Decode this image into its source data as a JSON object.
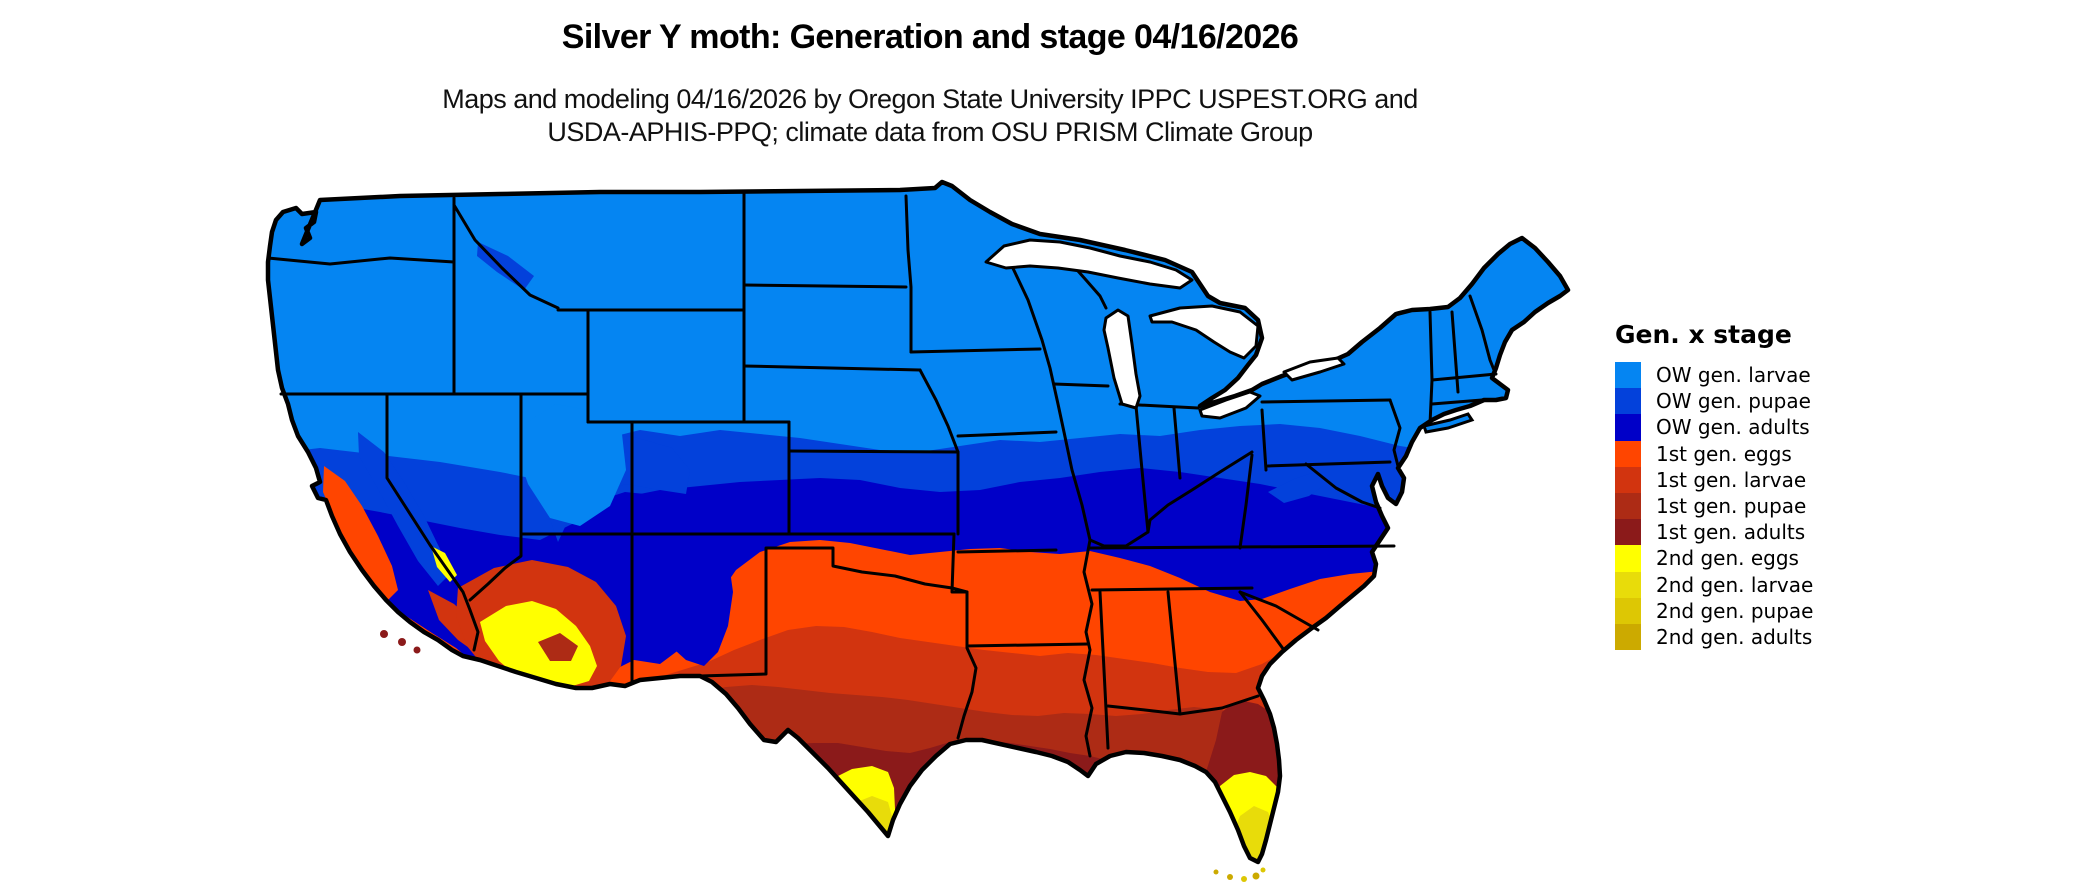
{
  "header": {
    "title": "Silver Y moth: Generation and stage 04/16/2026",
    "subtitle_line1": "Maps and modeling 04/16/2026 by Oregon State University IPPC USPEST.ORG and",
    "subtitle_line2": "USDA-APHIS-PPQ; climate data from OSU PRISM Climate Group"
  },
  "legend": {
    "title": "Gen. x stage",
    "items": [
      {
        "label": "OW gen. larvae",
        "color": "#0585F2"
      },
      {
        "label": "OW gen. pupae",
        "color": "#0341DB"
      },
      {
        "label": "OW gen. adults",
        "color": "#0000C8"
      },
      {
        "label": "1st gen. eggs",
        "color": "#FF4500"
      },
      {
        "label": "1st gen. larvae",
        "color": "#D2340F"
      },
      {
        "label": "1st gen. pupae",
        "color": "#AD2B15"
      },
      {
        "label": "1st gen. adults",
        "color": "#8B1A1A"
      },
      {
        "label": "2nd gen. eggs",
        "color": "#FFFF00"
      },
      {
        "label": "2nd gen. larvae",
        "color": "#E8DC0A"
      },
      {
        "label": "2nd gen. pupae",
        "color": "#DDC704"
      },
      {
        "label": "2nd gen. adults",
        "color": "#CCAA00"
      }
    ]
  },
  "map": {
    "region": "Continental United States",
    "date_shown": "04/16/2026",
    "palette": {
      "ow_larvae": "#0585F2",
      "ow_pupae": "#0341DB",
      "ow_adults": "#0000C8",
      "g1_eggs": "#FF4500",
      "g1_larvae": "#D2340F",
      "g1_pupae": "#AD2B15",
      "g1_adults": "#8B1A1A",
      "g2_eggs": "#FFFF00",
      "g2_larvae": "#E8DC0A",
      "g2_pupae": "#DDC704",
      "g2_adults": "#CCAA00",
      "border": "#000000",
      "water": "#FFFFFF"
    }
  }
}
